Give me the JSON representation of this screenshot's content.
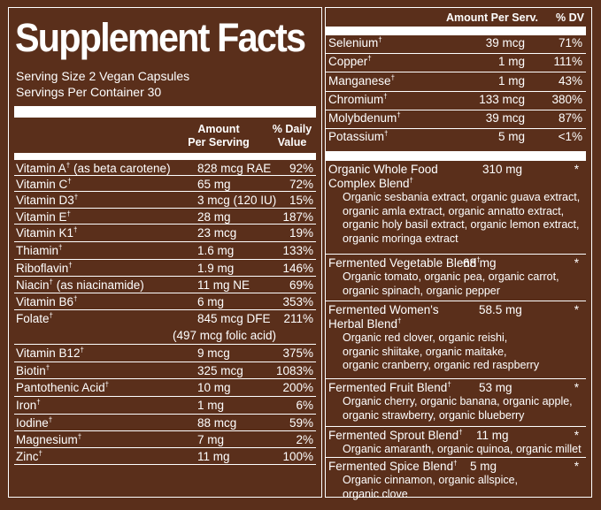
{
  "title": "Supplement Facts",
  "serving_size": "Serving Size 2 Vegan Capsules",
  "servings_per_container": "Servings Per Container 30",
  "left_headers": {
    "amount_line1": "Amount",
    "amount_line2": "Per Serving",
    "dv_line1": "% Daily",
    "dv_line2": "Value"
  },
  "left_rows": [
    {
      "name": "Vitamin A",
      "dagger": "†",
      "note": " (as beta carotene)",
      "amount": "828 mcg RAE",
      "dv": "92%"
    },
    {
      "name": "Vitamin C",
      "dagger": "†",
      "note": "",
      "amount": "65 mg",
      "dv": "72%"
    },
    {
      "name": "Vitamin D3",
      "dagger": "†",
      "note": "",
      "amount": "3 mcg (120 IU)",
      "dv": "15%"
    },
    {
      "name": "Vitamin E",
      "dagger": "†",
      "note": "",
      "amount": "28 mg",
      "dv": "187%"
    },
    {
      "name": "Vitamin K1",
      "dagger": "†",
      "note": "",
      "amount": "23 mcg",
      "dv": "19%"
    },
    {
      "name": "Thiamin",
      "dagger": "†",
      "note": "",
      "amount": "1.6 mg",
      "dv": "133%"
    },
    {
      "name": "Riboflavin",
      "dagger": "†",
      "note": "",
      "amount": "1.9 mg",
      "dv": "146%"
    },
    {
      "name": "Niacin",
      "dagger": "†",
      "note": " (as niacinamide)",
      "amount": "11 mg NE",
      "dv": "69%"
    },
    {
      "name": "Vitamin B6",
      "dagger": "†",
      "note": "",
      "amount": "6 mg",
      "dv": "353%"
    },
    {
      "name": "Folate",
      "dagger": "†",
      "note": "",
      "amount": "845 mcg DFE",
      "amount2": "(497 mcg folic acid)",
      "dv": "211%"
    },
    {
      "name": "Vitamin B12",
      "dagger": "†",
      "note": "",
      "amount": "9 mcg",
      "dv": "375%"
    },
    {
      "name": "Biotin",
      "dagger": "†",
      "note": "",
      "amount": "325 mcg",
      "dv": "1083%"
    },
    {
      "name": "Pantothenic Acid",
      "dagger": "†",
      "note": "",
      "amount": "10 mg",
      "dv": "200%"
    },
    {
      "name": "Iron",
      "dagger": "†",
      "note": "",
      "amount": "1 mg",
      "dv": "6%"
    },
    {
      "name": "Iodine",
      "dagger": "†",
      "note": "",
      "amount": "88 mcg",
      "dv": "59%"
    },
    {
      "name": "Magnesium",
      "dagger": "†",
      "note": "",
      "amount": "7 mg",
      "dv": "2%"
    },
    {
      "name": "Zinc",
      "dagger": "†",
      "note": "",
      "amount": "11 mg",
      "dv": "100%"
    }
  ],
  "right_headers": {
    "amount": "Amount Per Serv.",
    "dv": "% DV"
  },
  "right_rows": [
    {
      "name": "Selenium",
      "dagger": "†",
      "amount": "39 mcg",
      "dv": "71%"
    },
    {
      "name": "Copper",
      "dagger": "†",
      "amount": "1 mg",
      "dv": "111%"
    },
    {
      "name": "Manganese",
      "dagger": "†",
      "amount": "1 mg",
      "dv": "43%"
    },
    {
      "name": "Chromium",
      "dagger": "†",
      "amount": "133 mcg",
      "dv": "380%"
    },
    {
      "name": "Molybdenum",
      "dagger": "†",
      "amount": "39 mcg",
      "dv": "87%"
    },
    {
      "name": "Potassium",
      "dagger": "†",
      "amount": "5 mg",
      "dv": "<1%"
    }
  ],
  "blends": [
    {
      "name_line1": "Organic Whole Food",
      "name_line2": "Complex Blend",
      "dagger": "†",
      "amount": "310 mg",
      "star": "*",
      "ingredients": [
        "Organic sesbania extract, organic guava extract,",
        "organic amla extract, organic annatto extract,",
        "organic holy basil extract, organic lemon extract,",
        "organic moringa extract"
      ]
    },
    {
      "name_line1": "Fermented Vegetable Blend",
      "name_line2": "",
      "dagger": "†",
      "amount": "68 mg",
      "star": "*",
      "ingredients": [
        "Organic tomato, organic pea, organic carrot,",
        "organic spinach, organic pepper"
      ]
    },
    {
      "name_line1": "Fermented Women's",
      "name_line2": "Herbal Blend",
      "dagger": "†",
      "amount": "58.5 mg",
      "star": "*",
      "ingredients": [
        "Organic red clover, organic reishi,",
        "organic shiitake, organic maitake,",
        "organic cranberry, organic red raspberry"
      ]
    },
    {
      "name_line1": "Fermented Fruit Blend",
      "name_line2": "",
      "dagger": "†",
      "amount": "53 mg",
      "star": "*",
      "ingredients": [
        "Organic cherry, organic banana, organic apple,",
        "organic strawberry, organic blueberry"
      ]
    },
    {
      "name_line1": "Fermented Sprout Blend",
      "name_line2": "",
      "dagger": "†",
      "amount": "11 mg",
      "star": "*",
      "ingredients": [
        "Organic amaranth, organic quinoa, organic millet"
      ]
    },
    {
      "name_line1": "Fermented Spice Blend",
      "name_line2": "",
      "dagger": "†",
      "amount": "5 mg",
      "star": "*",
      "ingredients": [
        "Organic cinnamon, organic allspice,",
        "organic clove"
      ]
    }
  ],
  "colors": {
    "background": "#5a2f1b",
    "text": "#ffffff"
  }
}
